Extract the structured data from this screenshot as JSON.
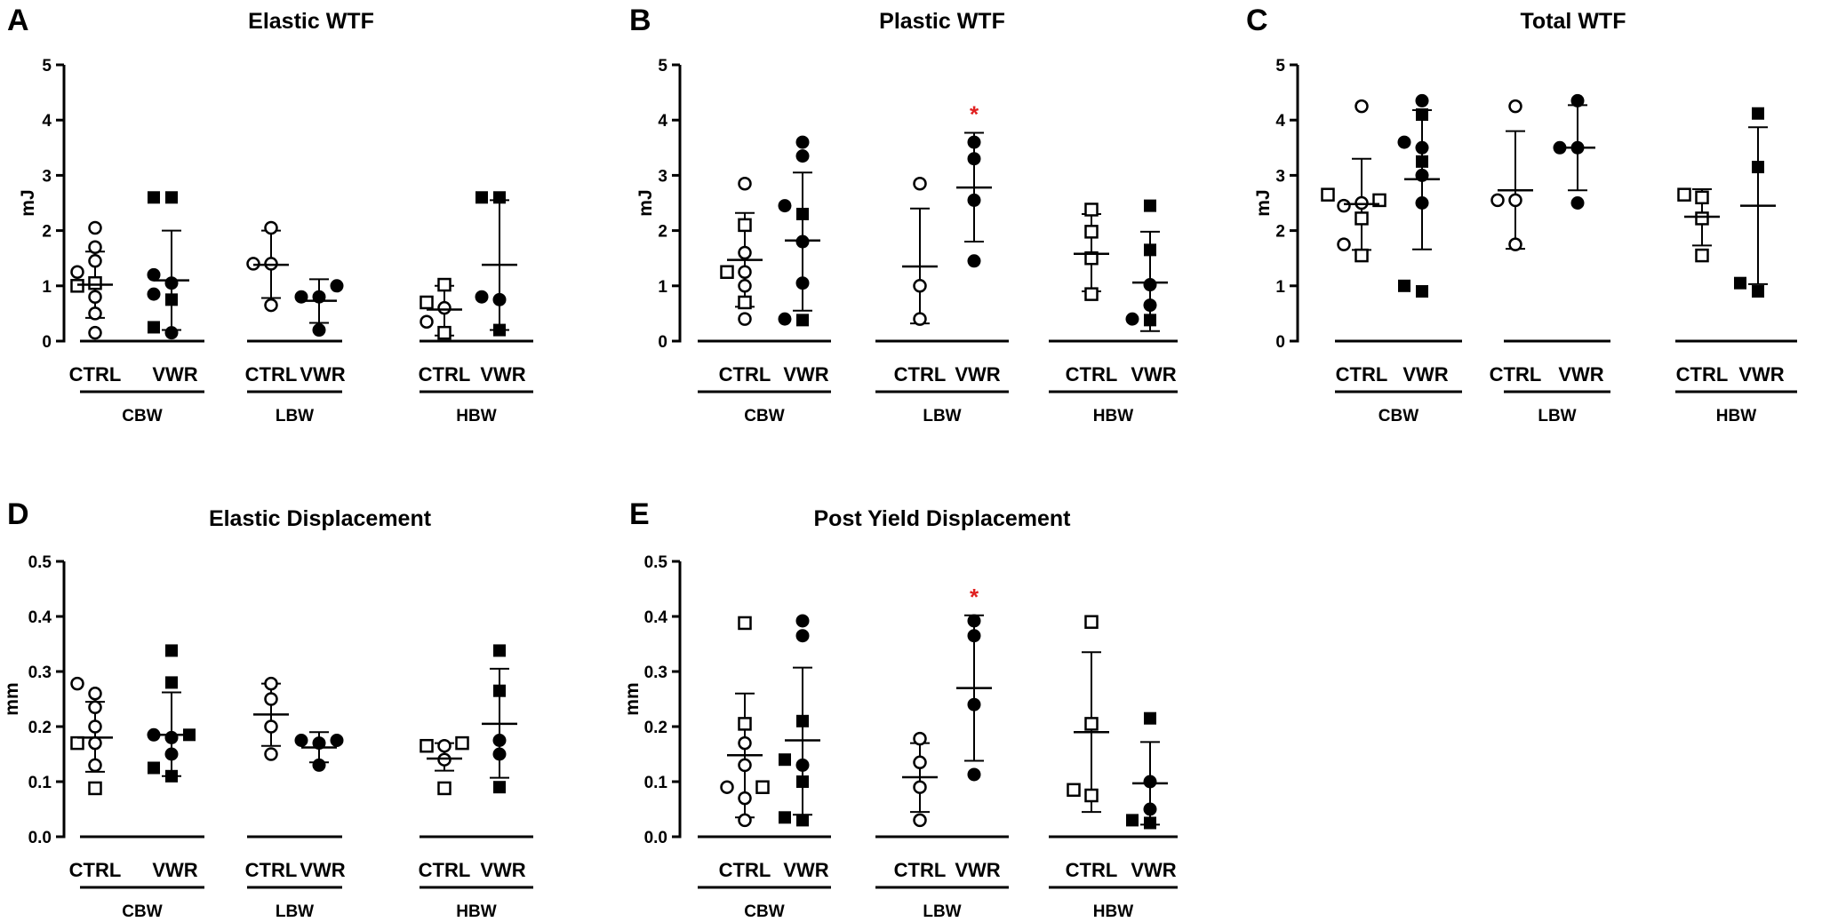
{
  "chart_data": [
    {
      "type": "scatter",
      "panel_label": "A",
      "title": "Elastic WTF",
      "ylabel": "mJ",
      "ylim": [
        0,
        5
      ],
      "yticks": [
        "0",
        "1",
        "2",
        "3",
        "4",
        "5"
      ],
      "group_labels": [
        "CBW",
        "LBW",
        "HBW"
      ],
      "condition_labels": [
        "CTRL",
        "VWR"
      ],
      "groups": [
        {
          "name": "CBW",
          "CTRL": {
            "mean": 1.02,
            "sd_upper": 1.62,
            "sd_lower": 0.42,
            "circles": [
              0.15,
              0.5,
              0.8,
              1.25,
              1.45,
              1.7,
              2.05
            ],
            "squares": [
              1.0,
              1.05
            ]
          },
          "VWR": {
            "mean": 1.1,
            "sd_upper": 2.0,
            "sd_lower": 0.2,
            "dots": [
              0.15,
              0.85,
              1.05,
              1.2
            ],
            "filled_squares": [
              0.25,
              0.75,
              2.6,
              2.6
            ]
          }
        },
        {
          "name": "LBW",
          "CTRL": {
            "mean": 1.38,
            "sd_upper": 2.0,
            "sd_lower": 0.78,
            "circles": [
              0.65,
              1.4,
              1.4,
              2.05
            ],
            "squares": []
          },
          "VWR": {
            "mean": 0.73,
            "sd_upper": 1.12,
            "sd_lower": 0.33,
            "dots": [
              0.2,
              0.8,
              0.8,
              1.0
            ],
            "filled_squares": []
          }
        },
        {
          "name": "HBW",
          "CTRL": {
            "mean": 0.57,
            "sd_upper": 1.0,
            "sd_lower": 0.1,
            "circles": [
              0.35,
              0.6
            ],
            "squares": [
              0.15,
              0.7,
              1.02
            ]
          },
          "VWR": {
            "mean": 1.38,
            "sd_upper": 2.55,
            "sd_lower": 0.2,
            "dots": [
              0.8,
              0.75
            ],
            "filled_squares": [
              0.2,
              2.6,
              2.6
            ]
          }
        }
      ]
    },
    {
      "type": "scatter",
      "panel_label": "B",
      "title": "Plastic WTF",
      "ylabel": "mJ",
      "ylim": [
        0,
        5
      ],
      "yticks": [
        "0",
        "1",
        "2",
        "3",
        "4",
        "5"
      ],
      "group_labels": [
        "CBW",
        "LBW",
        "HBW"
      ],
      "condition_labels": [
        "CTRL",
        "VWR"
      ],
      "groups": [
        {
          "name": "CBW",
          "CTRL": {
            "mean": 1.47,
            "sd_upper": 2.32,
            "sd_lower": 0.62,
            "circles": [
              0.4,
              1.0,
              1.25,
              1.6,
              2.85
            ],
            "squares": [
              0.7,
              1.25,
              2.1
            ]
          },
          "VWR": {
            "mean": 1.82,
            "sd_upper": 3.05,
            "sd_lower": 0.55,
            "dots": [
              0.4,
              1.05,
              1.8,
              2.45,
              3.35,
              3.6
            ],
            "filled_squares": [
              0.38,
              2.3
            ]
          }
        },
        {
          "name": "LBW",
          "CTRL": {
            "mean": 1.35,
            "sd_upper": 2.4,
            "sd_lower": 0.32,
            "circles": [
              0.4,
              1.0,
              2.85
            ],
            "squares": []
          },
          "VWR": {
            "mean": 2.78,
            "sd_upper": 3.77,
            "sd_lower": 1.8,
            "dots": [
              1.45,
              2.55,
              3.3,
              3.6
            ],
            "filled_squares": []
          }
        },
        {
          "name": "HBW",
          "CTRL": {
            "mean": 1.58,
            "sd_upper": 2.3,
            "sd_lower": 0.9,
            "circles": [],
            "squares": [
              0.85,
              1.5,
              1.98,
              2.38
            ]
          },
          "VWR": {
            "mean": 1.06,
            "sd_upper": 1.98,
            "sd_lower": 0.18,
            "dots": [
              0.4,
              0.65,
              1.02
            ],
            "filled_squares": [
              0.38,
              1.65,
              2.45
            ]
          }
        }
      ],
      "significance": [
        {
          "group": "LBW",
          "condition": "VWR",
          "mark": "*"
        }
      ]
    },
    {
      "type": "scatter",
      "panel_label": "C",
      "title": "Total WTF",
      "ylabel": "mJ",
      "ylim": [
        0,
        5
      ],
      "yticks": [
        "0",
        "1",
        "2",
        "3",
        "4",
        "5"
      ],
      "group_labels": [
        "CBW",
        "LBW",
        "HBW"
      ],
      "condition_labels": [
        "CTRL",
        "VWR"
      ],
      "groups": [
        {
          "name": "CBW",
          "CTRL": {
            "mean": 2.48,
            "sd_upper": 3.3,
            "sd_lower": 1.65,
            "circles": [
              1.75,
              2.45,
              2.5,
              4.25
            ],
            "squares": [
              1.55,
              2.22,
              2.55,
              2.65
            ]
          },
          "VWR": {
            "mean": 2.93,
            "sd_upper": 4.18,
            "sd_lower": 1.66,
            "dots": [
              2.5,
              3.0,
              3.5,
              3.6,
              4.35
            ],
            "filled_squares": [
              0.9,
              1.0,
              3.25,
              4.1
            ]
          }
        },
        {
          "name": "LBW",
          "CTRL": {
            "mean": 2.73,
            "sd_upper": 3.8,
            "sd_lower": 1.67,
            "circles": [
              1.75,
              2.55,
              2.55,
              4.25
            ],
            "squares": []
          },
          "VWR": {
            "mean": 3.5,
            "sd_upper": 4.27,
            "sd_lower": 2.73,
            "dots": [
              2.5,
              3.5,
              3.5,
              4.35
            ],
            "filled_squares": []
          }
        },
        {
          "name": "HBW",
          "CTRL": {
            "mean": 2.25,
            "sd_upper": 2.75,
            "sd_lower": 1.73,
            "circles": [],
            "squares": [
              1.55,
              2.22,
              2.6,
              2.65
            ]
          },
          "VWR": {
            "mean": 2.45,
            "sd_upper": 3.87,
            "sd_lower": 1.03,
            "dots": [],
            "filled_squares": [
              0.9,
              1.05,
              3.15,
              4.12
            ]
          }
        }
      ]
    },
    {
      "type": "scatter",
      "panel_label": "D",
      "title": "Elastic Displacement",
      "ylabel": "mm",
      "ylim": [
        0,
        0.5
      ],
      "yticks": [
        "0.0",
        "0.1",
        "0.2",
        "0.3",
        "0.4",
        "0.5"
      ],
      "group_labels": [
        "CBW",
        "LBW",
        "HBW"
      ],
      "condition_labels": [
        "CTRL",
        "VWR"
      ],
      "groups": [
        {
          "name": "CBW",
          "CTRL": {
            "mean": 0.18,
            "sd_upper": 0.245,
            "sd_lower": 0.118,
            "circles": [
              0.13,
              0.17,
              0.2,
              0.235,
              0.26,
              0.278
            ],
            "squares": [
              0.088,
              0.17
            ]
          },
          "VWR": {
            "mean": 0.185,
            "sd_upper": 0.262,
            "sd_lower": 0.11,
            "dots": [
              0.15,
              0.18,
              0.185
            ],
            "filled_squares": [
              0.11,
              0.125,
              0.185,
              0.28,
              0.338
            ]
          }
        },
        {
          "name": "LBW",
          "CTRL": {
            "mean": 0.222,
            "sd_upper": 0.278,
            "sd_lower": 0.165,
            "circles": [
              0.15,
              0.2,
              0.25,
              0.278
            ],
            "squares": []
          },
          "VWR": {
            "mean": 0.162,
            "sd_upper": 0.19,
            "sd_lower": 0.135,
            "dots": [
              0.13,
              0.17,
              0.175,
              0.175
            ],
            "filled_squares": []
          }
        },
        {
          "name": "HBW",
          "CTRL": {
            "mean": 0.142,
            "sd_upper": 0.17,
            "sd_lower": 0.12,
            "circles": [
              0.14,
              0.165
            ],
            "squares": [
              0.088,
              0.165,
              0.17
            ]
          },
          "VWR": {
            "mean": 0.205,
            "sd_upper": 0.305,
            "sd_lower": 0.107,
            "dots": [
              0.15,
              0.175
            ],
            "filled_squares": [
              0.09,
              0.265,
              0.338
            ]
          }
        }
      ]
    },
    {
      "type": "scatter",
      "panel_label": "E",
      "title": "Post Yield Displacement",
      "ylabel": "mm",
      "ylim": [
        0,
        0.5
      ],
      "yticks": [
        "0.0",
        "0.1",
        "0.2",
        "0.3",
        "0.4",
        "0.5"
      ],
      "group_labels": [
        "CBW",
        "LBW",
        "HBW"
      ],
      "condition_labels": [
        "CTRL",
        "VWR"
      ],
      "groups": [
        {
          "name": "CBW",
          "CTRL": {
            "mean": 0.148,
            "sd_upper": 0.26,
            "sd_lower": 0.035,
            "circles": [
              0.03,
              0.07,
              0.09,
              0.13,
              0.17
            ],
            "squares": [
              0.09,
              0.205,
              0.388
            ]
          },
          "VWR": {
            "mean": 0.175,
            "sd_upper": 0.307,
            "sd_lower": 0.04,
            "dots": [
              0.13,
              0.365,
              0.392
            ],
            "filled_squares": [
              0.03,
              0.035,
              0.1,
              0.14,
              0.21
            ]
          }
        },
        {
          "name": "LBW",
          "CTRL": {
            "mean": 0.108,
            "sd_upper": 0.17,
            "sd_lower": 0.045,
            "circles": [
              0.03,
              0.09,
              0.135,
              0.178
            ],
            "squares": []
          },
          "VWR": {
            "mean": 0.27,
            "sd_upper": 0.402,
            "sd_lower": 0.138,
            "dots": [
              0.113,
              0.24,
              0.365,
              0.392
            ],
            "filled_squares": []
          }
        },
        {
          "name": "HBW",
          "CTRL": {
            "mean": 0.19,
            "sd_upper": 0.335,
            "sd_lower": 0.045,
            "circles": [],
            "squares": [
              0.075,
              0.085,
              0.205,
              0.39
            ]
          },
          "VWR": {
            "mean": 0.097,
            "sd_upper": 0.172,
            "sd_lower": 0.022,
            "dots": [
              0.05,
              0.1
            ],
            "filled_squares": [
              0.025,
              0.03,
              0.215
            ]
          }
        }
      ],
      "significance": [
        {
          "group": "LBW",
          "condition": "VWR",
          "mark": "*"
        }
      ]
    }
  ],
  "colors": {
    "ink": "#000000",
    "significance": "#e02020",
    "background": "#ffffff"
  },
  "marker_legend": {
    "circle": "open-circle",
    "square": "open-square",
    "dot": "filled-circle",
    "filled_square": "filled-square"
  }
}
